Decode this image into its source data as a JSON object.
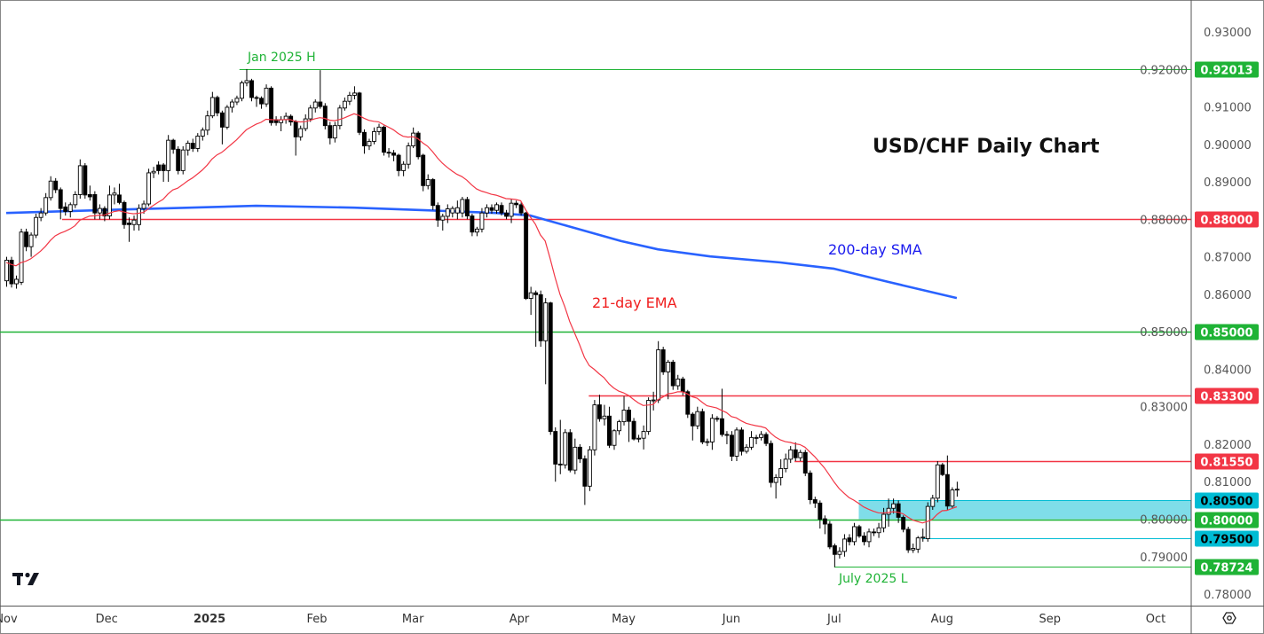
{
  "chart_data": {
    "type": "candlestick",
    "title": "USD/CHF Daily Chart",
    "symbol": "USD/CHF",
    "timeframe": "Daily",
    "ylim": [
      0.775,
      0.935
    ],
    "y_ticks": [
      "0.93000",
      "0.92000",
      "0.91000",
      "0.90000",
      "0.89000",
      "0.88000",
      "0.87000",
      "0.86000",
      "0.85000",
      "0.84000",
      "0.83000",
      "0.82000",
      "0.81000",
      "0.80000",
      "0.79000",
      "0.78000"
    ],
    "x_ticks": [
      {
        "label": "Nov",
        "bar": 0
      },
      {
        "label": "Dec",
        "bar": 20.5
      },
      {
        "label": "2025",
        "bar": 41.5,
        "bold": true
      },
      {
        "label": "Feb",
        "bar": 63.4
      },
      {
        "label": "Mar",
        "bar": 83
      },
      {
        "label": "Apr",
        "bar": 104.7
      },
      {
        "label": "May",
        "bar": 126
      },
      {
        "label": "Jun",
        "bar": 148
      },
      {
        "label": "Jul",
        "bar": 169
      },
      {
        "label": "Aug",
        "bar": 191
      },
      {
        "label": "Sep",
        "bar": 213
      },
      {
        "label": "Oct",
        "bar": 234.6
      }
    ],
    "candle_fields": [
      "open",
      "high",
      "low",
      "close"
    ],
    "candles": [
      [
        0.8636,
        0.87,
        0.862,
        0.8691
      ],
      [
        0.8691,
        0.87,
        0.8618,
        0.8628
      ],
      [
        0.8628,
        0.865,
        0.8615,
        0.864
      ],
      [
        0.8632,
        0.8775,
        0.8625,
        0.8766
      ],
      [
        0.8766,
        0.8775,
        0.8715,
        0.8727
      ],
      [
        0.8727,
        0.8765,
        0.87,
        0.8758
      ],
      [
        0.8758,
        0.8815,
        0.875,
        0.8805
      ],
      [
        0.8805,
        0.883,
        0.8795,
        0.8817
      ],
      [
        0.8817,
        0.887,
        0.881,
        0.8858
      ],
      [
        0.8858,
        0.8915,
        0.885,
        0.8902
      ],
      [
        0.8902,
        0.891,
        0.887,
        0.8879
      ],
      [
        0.8879,
        0.8885,
        0.88,
        0.8829
      ],
      [
        0.8833,
        0.8845,
        0.881,
        0.8821
      ],
      [
        0.8821,
        0.8845,
        0.8805,
        0.8839
      ],
      [
        0.8839,
        0.8875,
        0.883,
        0.8866
      ],
      [
        0.8866,
        0.896,
        0.8855,
        0.8943
      ],
      [
        0.8943,
        0.895,
        0.8855,
        0.8865
      ],
      [
        0.8866,
        0.889,
        0.885,
        0.886
      ],
      [
        0.8866,
        0.8875,
        0.88,
        0.8817
      ],
      [
        0.8817,
        0.884,
        0.88,
        0.8829
      ],
      [
        0.8829,
        0.8835,
        0.8795,
        0.8809
      ],
      [
        0.8809,
        0.889,
        0.88,
        0.8865
      ],
      [
        0.8865,
        0.8885,
        0.884,
        0.887
      ],
      [
        0.8865,
        0.8895,
        0.884,
        0.8845
      ],
      [
        0.8845,
        0.885,
        0.8775,
        0.8786
      ],
      [
        0.879,
        0.8805,
        0.874,
        0.8786
      ],
      [
        0.8786,
        0.881,
        0.877,
        0.8798
      ],
      [
        0.8786,
        0.884,
        0.877,
        0.8829
      ],
      [
        0.8829,
        0.885,
        0.8815,
        0.8841
      ],
      [
        0.8841,
        0.8935,
        0.8835,
        0.8924
      ],
      [
        0.8924,
        0.894,
        0.891,
        0.8928
      ],
      [
        0.8945,
        0.8955,
        0.892,
        0.893
      ],
      [
        0.8945,
        0.895,
        0.89,
        0.893
      ],
      [
        0.893,
        0.9025,
        0.89,
        0.9011
      ],
      [
        0.9011,
        0.9015,
        0.8975,
        0.8987
      ],
      [
        0.8987,
        0.8995,
        0.892,
        0.893
      ],
      [
        0.893,
        0.8995,
        0.892,
        0.8985
      ],
      [
        0.8985,
        0.901,
        0.897,
        0.9003
      ],
      [
        0.9003,
        0.9015,
        0.898,
        0.8989
      ],
      [
        0.8989,
        0.903,
        0.898,
        0.9022
      ],
      [
        0.9022,
        0.9045,
        0.901,
        0.9038
      ],
      [
        0.9038,
        0.909,
        0.9025,
        0.9076
      ],
      [
        0.9076,
        0.914,
        0.907,
        0.9125
      ],
      [
        0.9125,
        0.913,
        0.9075,
        0.9084
      ],
      [
        0.9084,
        0.909,
        0.9,
        0.9046
      ],
      [
        0.9046,
        0.9105,
        0.904,
        0.9099
      ],
      [
        0.9099,
        0.912,
        0.9085,
        0.9113
      ],
      [
        0.9113,
        0.913,
        0.9105,
        0.9123
      ],
      [
        0.9123,
        0.917,
        0.9115,
        0.9164
      ],
      [
        0.9164,
        0.9201,
        0.9155,
        0.917
      ],
      [
        0.917,
        0.9175,
        0.9115,
        0.9125
      ],
      [
        0.9125,
        0.913,
        0.91,
        0.9123
      ],
      [
        0.9123,
        0.9128,
        0.9095,
        0.9108
      ],
      [
        0.9108,
        0.916,
        0.91,
        0.915
      ],
      [
        0.915,
        0.9155,
        0.905,
        0.9058
      ],
      [
        0.9066,
        0.9075,
        0.905,
        0.9058
      ],
      [
        0.9058,
        0.9075,
        0.9035,
        0.9066
      ],
      [
        0.9066,
        0.9085,
        0.9055,
        0.9075
      ],
      [
        0.9075,
        0.908,
        0.905,
        0.906
      ],
      [
        0.906,
        0.9065,
        0.897,
        0.902
      ],
      [
        0.902,
        0.905,
        0.901,
        0.9042
      ],
      [
        0.9042,
        0.908,
        0.9035,
        0.9068
      ],
      [
        0.9068,
        0.9105,
        0.906,
        0.9097
      ],
      [
        0.9097,
        0.912,
        0.9085,
        0.9113
      ],
      [
        0.9113,
        0.9198,
        0.9095,
        0.9101
      ],
      [
        0.9102,
        0.911,
        0.904,
        0.905
      ],
      [
        0.905,
        0.906,
        0.9,
        0.9017
      ],
      [
        0.9017,
        0.906,
        0.9005,
        0.905
      ],
      [
        0.905,
        0.9105,
        0.904,
        0.9097
      ],
      [
        0.9097,
        0.9125,
        0.909,
        0.9115
      ],
      [
        0.9115,
        0.914,
        0.9105,
        0.9131
      ],
      [
        0.9131,
        0.9155,
        0.912,
        0.9137
      ],
      [
        0.9137,
        0.914,
        0.9025,
        0.9032
      ],
      [
        0.9032,
        0.904,
        0.8975,
        0.8996
      ],
      [
        0.8996,
        0.9015,
        0.8985,
        0.9008
      ],
      [
        0.9008,
        0.9045,
        0.9,
        0.9034
      ],
      [
        0.9034,
        0.9055,
        0.9025,
        0.9046
      ],
      [
        0.9046,
        0.905,
        0.897,
        0.8979
      ],
      [
        0.8979,
        0.899,
        0.8965,
        0.8977
      ],
      [
        0.8977,
        0.8985,
        0.8955,
        0.8971
      ],
      [
        0.8971,
        0.8975,
        0.8915,
        0.893
      ],
      [
        0.893,
        0.8955,
        0.8915,
        0.8947
      ],
      [
        0.8947,
        0.9005,
        0.8935,
        0.8996
      ],
      [
        0.8996,
        0.9045,
        0.899,
        0.903
      ],
      [
        0.903,
        0.9035,
        0.896,
        0.8967
      ],
      [
        0.8971,
        0.8975,
        0.8875,
        0.889
      ],
      [
        0.889,
        0.892,
        0.888,
        0.8906
      ],
      [
        0.8906,
        0.891,
        0.8825,
        0.8837
      ],
      [
        0.8837,
        0.8845,
        0.878,
        0.8798
      ],
      [
        0.8798,
        0.8815,
        0.877,
        0.8808
      ],
      [
        0.8808,
        0.884,
        0.879,
        0.8828
      ],
      [
        0.8817,
        0.8835,
        0.8805,
        0.8829
      ],
      [
        0.8817,
        0.885,
        0.88,
        0.8831
      ],
      [
        0.8817,
        0.886,
        0.8805,
        0.8853
      ],
      [
        0.8853,
        0.886,
        0.88,
        0.8809
      ],
      [
        0.8809,
        0.8815,
        0.8755,
        0.8766
      ],
      [
        0.8766,
        0.878,
        0.8755,
        0.8774
      ],
      [
        0.8774,
        0.883,
        0.8765,
        0.8817
      ],
      [
        0.8817,
        0.884,
        0.8805,
        0.8831
      ],
      [
        0.8831,
        0.884,
        0.8815,
        0.8824
      ],
      [
        0.8824,
        0.8845,
        0.8815,
        0.8839
      ],
      [
        0.8837,
        0.8845,
        0.881,
        0.8817
      ],
      [
        0.8817,
        0.8825,
        0.88,
        0.8808
      ],
      [
        0.8808,
        0.8855,
        0.879,
        0.8843
      ],
      [
        0.8843,
        0.885,
        0.883,
        0.8839
      ],
      [
        0.8839,
        0.8845,
        0.881,
        0.8817
      ],
      [
        0.8817,
        0.882,
        0.8585,
        0.8589
      ],
      [
        0.8589,
        0.862,
        0.8545,
        0.8604
      ],
      [
        0.8604,
        0.861,
        0.846,
        0.8599
      ],
      [
        0.8599,
        0.861,
        0.846,
        0.8476
      ],
      [
        0.8476,
        0.859,
        0.836,
        0.8577
      ],
      [
        0.8577,
        0.858,
        0.8225,
        0.8234
      ],
      [
        0.8234,
        0.8245,
        0.81,
        0.8147
      ],
      [
        0.8147,
        0.8265,
        0.812,
        0.8145
      ],
      [
        0.8145,
        0.824,
        0.8135,
        0.8231
      ],
      [
        0.8231,
        0.824,
        0.8125,
        0.8131
      ],
      [
        0.8131,
        0.8215,
        0.812,
        0.8192
      ],
      [
        0.8192,
        0.82,
        0.815,
        0.8161
      ],
      [
        0.8161,
        0.817,
        0.8038,
        0.8088
      ],
      [
        0.8088,
        0.8195,
        0.8075,
        0.8185
      ],
      [
        0.8185,
        0.8318,
        0.817,
        0.8305
      ],
      [
        0.8305,
        0.8332,
        0.826,
        0.8268
      ],
      [
        0.8268,
        0.8305,
        0.825,
        0.8275
      ],
      [
        0.8275,
        0.83,
        0.819,
        0.8197
      ],
      [
        0.8197,
        0.824,
        0.8185,
        0.8236
      ],
      [
        0.8236,
        0.8265,
        0.8225,
        0.826
      ],
      [
        0.826,
        0.8328,
        0.825,
        0.8291
      ],
      [
        0.8291,
        0.83,
        0.8206,
        0.8261
      ],
      [
        0.8261,
        0.827,
        0.821,
        0.8214
      ],
      [
        0.8214,
        0.8225,
        0.8205,
        0.8216
      ],
      [
        0.8216,
        0.825,
        0.8186,
        0.8234
      ],
      [
        0.8234,
        0.8325,
        0.8225,
        0.8317
      ],
      [
        0.8317,
        0.834,
        0.829,
        0.8318
      ],
      [
        0.8318,
        0.8475,
        0.831,
        0.8452
      ],
      [
        0.8452,
        0.846,
        0.8385,
        0.8393
      ],
      [
        0.8393,
        0.8425,
        0.832,
        0.8419
      ],
      [
        0.8419,
        0.8425,
        0.8345,
        0.8356
      ],
      [
        0.8356,
        0.8385,
        0.8345,
        0.8374
      ],
      [
        0.8374,
        0.838,
        0.833,
        0.834
      ],
      [
        0.834,
        0.8345,
        0.827,
        0.828
      ],
      [
        0.828,
        0.8285,
        0.821,
        0.8249
      ],
      [
        0.8249,
        0.83,
        0.824,
        0.8287
      ],
      [
        0.8287,
        0.8295,
        0.82,
        0.8206
      ],
      [
        0.8206,
        0.8215,
        0.8195,
        0.8207
      ],
      [
        0.8206,
        0.828,
        0.8185,
        0.8269
      ],
      [
        0.8269,
        0.8275,
        0.826,
        0.8268
      ],
      [
        0.8268,
        0.8348,
        0.822,
        0.8226
      ],
      [
        0.8226,
        0.8235,
        0.82,
        0.8224
      ],
      [
        0.8224,
        0.8235,
        0.8155,
        0.8168
      ],
      [
        0.8168,
        0.8245,
        0.8155,
        0.8238
      ],
      [
        0.8238,
        0.8245,
        0.817,
        0.8181
      ],
      [
        0.8181,
        0.82,
        0.8175,
        0.8192
      ],
      [
        0.8192,
        0.8235,
        0.8185,
        0.8218
      ],
      [
        0.8218,
        0.8225,
        0.82,
        0.8218
      ],
      [
        0.8218,
        0.8235,
        0.821,
        0.8226
      ],
      [
        0.8226,
        0.8232,
        0.8195,
        0.8202
      ],
      [
        0.8202,
        0.821,
        0.8085,
        0.8098
      ],
      [
        0.8098,
        0.812,
        0.8055,
        0.8111
      ],
      [
        0.8111,
        0.816,
        0.809,
        0.8135
      ],
      [
        0.8135,
        0.8175,
        0.8125,
        0.816
      ],
      [
        0.816,
        0.8195,
        0.815,
        0.8185
      ],
      [
        0.8185,
        0.8205,
        0.8155,
        0.8164
      ],
      [
        0.8164,
        0.8185,
        0.8155,
        0.8178
      ],
      [
        0.8178,
        0.8185,
        0.8115,
        0.8123
      ],
      [
        0.8123,
        0.813,
        0.804,
        0.8052
      ],
      [
        0.8052,
        0.806,
        0.803,
        0.8043
      ],
      [
        0.8043,
        0.805,
        0.7975,
        0.8
      ],
      [
        0.8001,
        0.801,
        0.796,
        0.7987
      ],
      [
        0.7987,
        0.7995,
        0.792,
        0.7926
      ],
      [
        0.7929,
        0.7935,
        0.7872,
        0.7906
      ],
      [
        0.7906,
        0.7925,
        0.7895,
        0.7914
      ],
      [
        0.7914,
        0.796,
        0.79,
        0.7947
      ],
      [
        0.795,
        0.796,
        0.793,
        0.794
      ],
      [
        0.794,
        0.799,
        0.793,
        0.798
      ],
      [
        0.798,
        0.7985,
        0.795,
        0.7955
      ],
      [
        0.7955,
        0.7965,
        0.793,
        0.794
      ],
      [
        0.794,
        0.7975,
        0.7925,
        0.7966
      ],
      [
        0.7966,
        0.7975,
        0.7955,
        0.7965
      ],
      [
        0.7964,
        0.799,
        0.795,
        0.7977
      ],
      [
        0.7977,
        0.803,
        0.7965,
        0.8013
      ],
      [
        0.8013,
        0.8055,
        0.798,
        0.8029
      ],
      [
        0.8029,
        0.8055,
        0.8015,
        0.8041
      ],
      [
        0.8041,
        0.805,
        0.799,
        0.8005
      ],
      [
        0.8005,
        0.801,
        0.7965,
        0.7973
      ],
      [
        0.7973,
        0.798,
        0.791,
        0.7918
      ],
      [
        0.7918,
        0.7935,
        0.791,
        0.7922
      ],
      [
        0.792,
        0.7955,
        0.791,
        0.795
      ],
      [
        0.795,
        0.7975,
        0.794,
        0.7952
      ],
      [
        0.7948,
        0.8045,
        0.794,
        0.8034
      ],
      [
        0.8034,
        0.8065,
        0.8025,
        0.8056
      ],
      [
        0.8056,
        0.8155,
        0.8045,
        0.8145
      ],
      [
        0.8145,
        0.815,
        0.8115,
        0.8119
      ],
      [
        0.8119,
        0.817,
        0.8025,
        0.8035
      ],
      [
        0.8035,
        0.8085,
        0.803,
        0.8078
      ],
      [
        0.8078,
        0.81,
        0.806,
        0.808
      ]
    ],
    "ema": {
      "label": "21-day EMA",
      "period": 21,
      "color": "#f23645"
    },
    "sma": {
      "label": "200-day SMA",
      "period": 200,
      "color": "#2962ff",
      "points": [
        [
          0,
          0.8817
        ],
        [
          26,
          0.8827
        ],
        [
          51,
          0.8836
        ],
        [
          71,
          0.8831
        ],
        [
          86,
          0.8824
        ],
        [
          100,
          0.8817
        ],
        [
          107,
          0.881
        ],
        [
          116.5,
          0.8775
        ],
        [
          125.5,
          0.8742
        ],
        [
          133,
          0.872
        ],
        [
          143.7,
          0.8701
        ],
        [
          158,
          0.8685
        ],
        [
          169,
          0.8668
        ],
        [
          180,
          0.8633
        ],
        [
          194,
          0.859
        ]
      ]
    },
    "levels": [
      {
        "price": 0.92013,
        "label": "0.92013",
        "color": "#1fb336",
        "from_bar": 47.6,
        "note": "Jan 2025 H"
      },
      {
        "price": 0.88,
        "label": "0.88000",
        "color": "#f23645",
        "from_bar": 11.4
      },
      {
        "price": 0.85,
        "label": "0.85000",
        "color": "#1fb336",
        "from_bar": -2
      },
      {
        "price": 0.833,
        "label": "0.83300",
        "color": "#f23645",
        "from_bar": 118.9
      },
      {
        "price": 0.8155,
        "label": "0.81550",
        "color": "#f23645",
        "from_bar": 160.9
      },
      {
        "price": 0.805,
        "label": "0.80500",
        "color": "#00bcd4",
        "from_bar": 174,
        "text_color": "#000000"
      },
      {
        "price": 0.8,
        "label": "0.80000",
        "color": "#1fb336",
        "from_bar": -2
      },
      {
        "price": 0.795,
        "label": "0.79500",
        "color": "#00bcd4",
        "from_bar": 187,
        "text_color": "#000000"
      },
      {
        "price": 0.78724,
        "label": "0.78724",
        "color": "#1fb336",
        "from_bar": 169,
        "note": "July 2025 L"
      }
    ],
    "zone": {
      "from_price": 0.8,
      "to_price": 0.805,
      "from_bar": 174,
      "color": "#7fdde9"
    },
    "annotations": {
      "jan_high": "Jan 2025 H",
      "july_low": "July 2025 L",
      "title": "USD/CHF Daily Chart",
      "sma_label": "200-day SMA",
      "ema_label": "21-day EMA"
    },
    "grid": false,
    "legend": "none"
  },
  "branding": {
    "logo": "tradingview-logo",
    "settings_icon": "gear-icon"
  }
}
